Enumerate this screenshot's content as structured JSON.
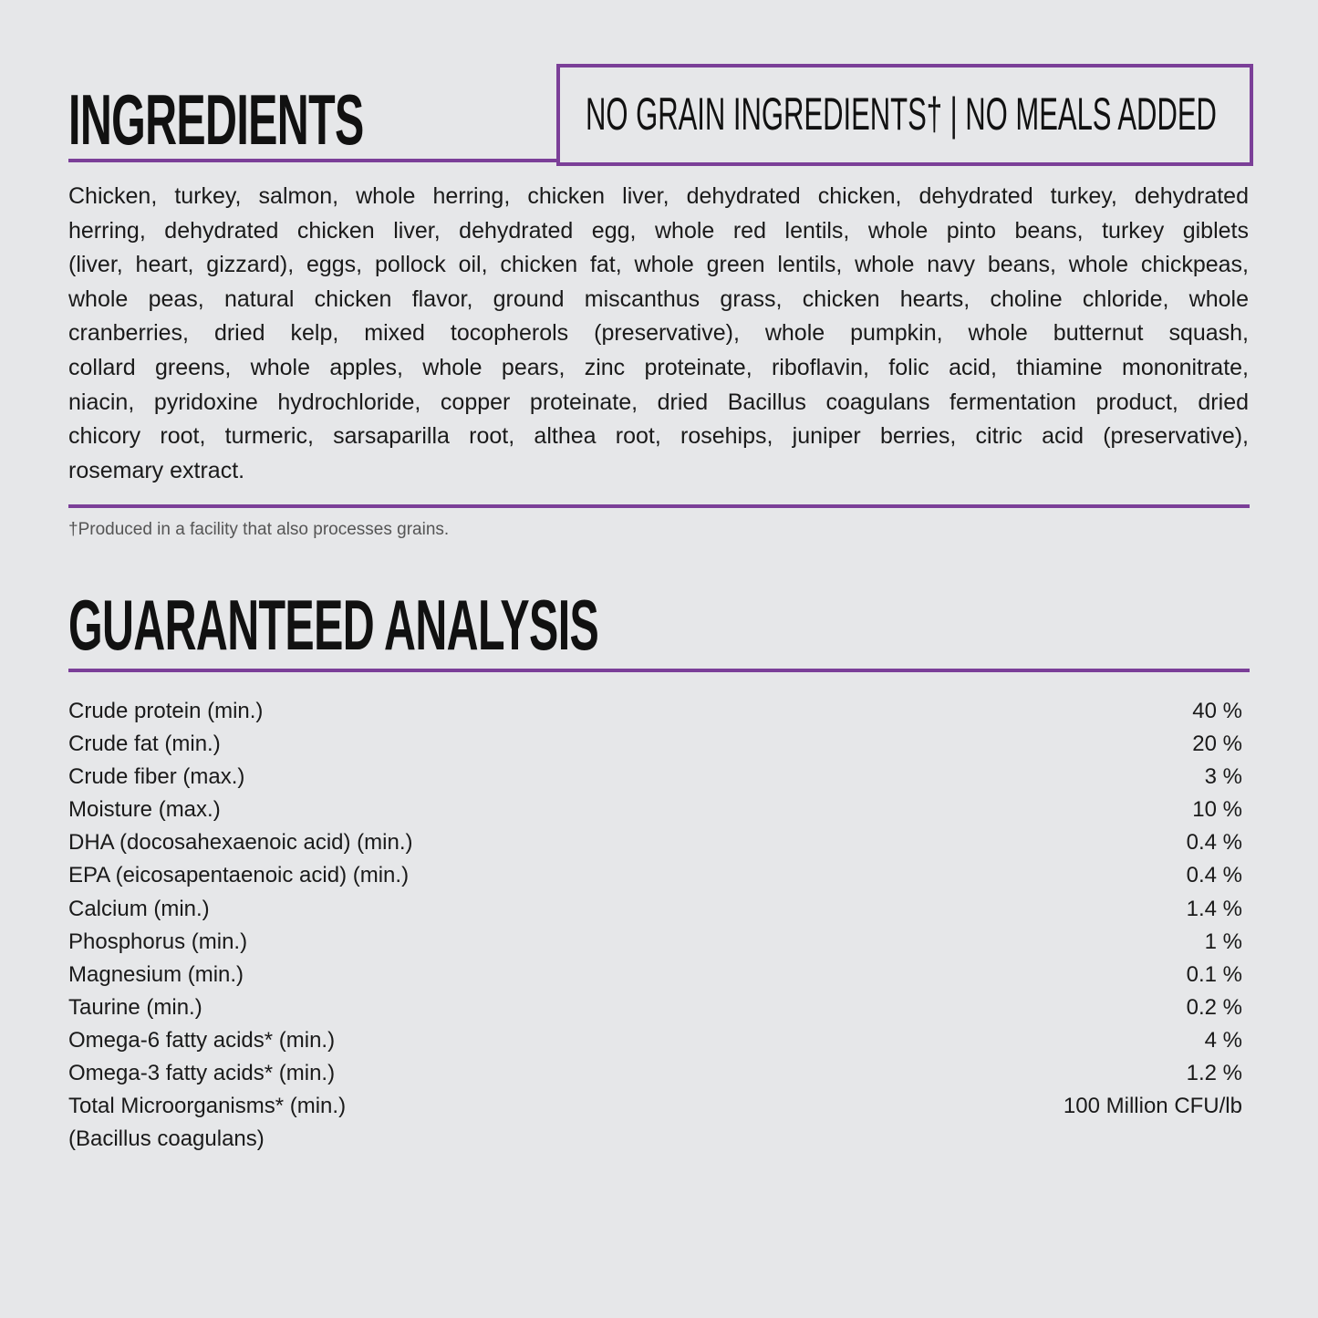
{
  "ingredients": {
    "title": "INGREDIENTS",
    "badge": "NO GRAIN INGREDIENTS† | NO MEALS ADDED",
    "lines": [
      "Chicken, turkey, salmon, whole herring, chicken liver, dehydrated chicken, dehydrated turkey, dehydrated",
      "herring, dehydrated chicken liver, dehydrated egg, whole red lentils, whole pinto beans, turkey giblets",
      "(liver, heart, gizzard), eggs, pollock oil, chicken fat, whole green lentils, whole navy beans, whole chickpeas,",
      "whole peas, natural chicken flavor, ground miscanthus grass, chicken hearts, choline chloride, whole",
      "cranberries, dried kelp, mixed tocopherols (preservative), whole pumpkin, whole butternut squash,",
      "collard greens, whole apples, whole pears, zinc proteinate, riboflavin, folic acid, thiamine mononitrate,",
      "niacin, pyridoxine hydrochloride, copper proteinate, dried Bacillus coagulans fermentation product, dried",
      "chicory root, turmeric, sarsaparilla root, althea root, rosehips, juniper berries, citric acid (preservative),",
      "rosemary extract."
    ],
    "footnote": "†Produced in a facility that also processes grains."
  },
  "analysis": {
    "title": "GUARANTEED ANALYSIS",
    "rows": [
      {
        "label": "Crude protein (min.)",
        "value": "40 %"
      },
      {
        "label": "Crude fat (min.)",
        "value": "20 %"
      },
      {
        "label": "Crude fiber (max.)",
        "value": "3 %"
      },
      {
        "label": "Moisture (max.)",
        "value": "10 %"
      },
      {
        "label": "DHA (docosahexaenoic acid) (min.)",
        "value": "0.4 %"
      },
      {
        "label": "EPA (eicosapentaenoic acid) (min.)",
        "value": "0.4 %"
      },
      {
        "label": "Calcium (min.)",
        "value": "1.4 %"
      },
      {
        "label": "Phosphorus (min.)",
        "value": "1 %"
      },
      {
        "label": "Magnesium (min.)",
        "value": "0.1 %"
      },
      {
        "label": "Taurine (min.)",
        "value": "0.2 %"
      },
      {
        "label": "Omega-6 fatty acids* (min.)",
        "value": "4 %"
      },
      {
        "label": "Omega-3 fatty acids* (min.)",
        "value": "1.2 %"
      },
      {
        "label": "Total Microorganisms* (min.)",
        "value": "100 Million CFU/lb"
      },
      {
        "label": "(Bacillus coagulans)",
        "value": ""
      }
    ]
  },
  "colors": {
    "accent": "#7b3f98",
    "background": "#e6e7e9"
  }
}
